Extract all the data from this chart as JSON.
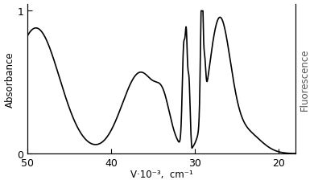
{
  "title": "",
  "xlabel": "V·10⁻³,  cm⁻¹",
  "ylabel_left": "Absorbance",
  "ylabel_right": "Fluorescence",
  "xlim": [
    50,
    18
  ],
  "ylim": [
    0,
    1.05
  ],
  "yticks": [
    0,
    1
  ],
  "xticks": [
    50,
    40,
    30,
    20
  ],
  "background_color": "#ffffff",
  "line_color": "#000000",
  "linewidth": 1.2
}
